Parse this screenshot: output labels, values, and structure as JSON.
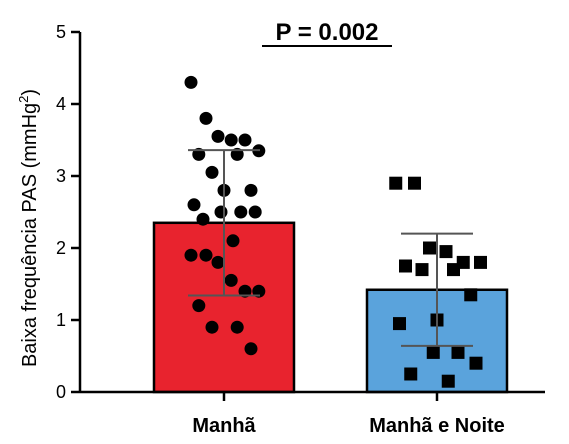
{
  "chart_data": {
    "type": "bar",
    "ylabel_main": "Baixa frequência PAS (mmHg",
    "ylabel_sup": "2",
    "ylabel_close": ")",
    "annotation": "P = 0.002",
    "ylim": [
      0,
      5
    ],
    "yticks": [
      "0",
      "1",
      "2",
      "3",
      "4",
      "5"
    ],
    "categories": [
      "Manhã",
      "Manhã e Noite"
    ],
    "values": [
      2.35,
      1.42
    ],
    "sd": [
      1.01,
      0.78
    ],
    "colors": [
      "#e8232e",
      "#5aa3dc"
    ],
    "points": [
      [
        4.3,
        3.8,
        3.55,
        3.5,
        3.5,
        3.35,
        3.3,
        3.3,
        3.05,
        2.8,
        2.8,
        2.6,
        2.5,
        2.5,
        2.5,
        2.4,
        2.1,
        1.9,
        1.9,
        1.8,
        1.55,
        1.4,
        1.4,
        1.2,
        0.9,
        0.9,
        0.6
      ],
      [
        2.9,
        2.9,
        2.0,
        1.95,
        1.8,
        1.8,
        1.75,
        1.7,
        1.7,
        1.35,
        1.0,
        0.95,
        0.55,
        0.55,
        0.4,
        0.25,
        0.15
      ]
    ],
    "point_shapes": [
      "circle",
      "square"
    ]
  }
}
